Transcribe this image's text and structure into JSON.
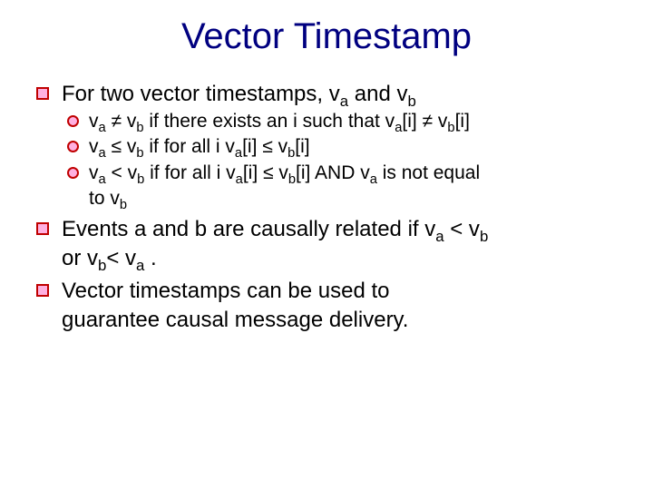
{
  "colors": {
    "title": "#000080",
    "bullet_border": "#c00000",
    "bullet_fill": "#ffb0e0",
    "text": "#000000",
    "background": "#ffffff"
  },
  "typography": {
    "font_family": "Comic Sans MS",
    "title_fontsize_pt": 30,
    "l1_fontsize_pt": 18,
    "l2_fontsize_pt": 16
  },
  "title": "Vector Timestamp",
  "bullets": {
    "b1": {
      "text_html": "For two vector timestamps, v<sub>a</sub> and v<sub>b</sub>",
      "sub": {
        "s1": {
          "text_html": "v<sub>a</sub> ≠ v<sub>b</sub> if there exists an i such that v<sub>a</sub>[i] ≠ v<sub>b</sub>[i]"
        },
        "s2": {
          "text_html": "v<sub>a</sub> ≤ v<sub>b</sub> if for all i v<sub>a</sub>[i] ≤ v<sub>b</sub>[i]"
        },
        "s3": {
          "line1_html": "v<sub>a</sub> &lt; v<sub>b</sub> if for all i v<sub>a</sub>[i] ≤ v<sub>b</sub>[i]  AND v<sub>a</sub> is not equal",
          "line2_html": "to v<sub>b</sub>"
        }
      }
    },
    "b2": {
      "line1_html": "Events a and b are causally related if v<sub>a</sub> &lt; v<sub>b</sub>",
      "line2_html": "or v<sub>b</sub>&lt; v<sub>a</sub> ."
    },
    "b3": {
      "line1_html": "Vector timestamps can be used to",
      "line2_html": "guarantee causal message delivery."
    }
  }
}
